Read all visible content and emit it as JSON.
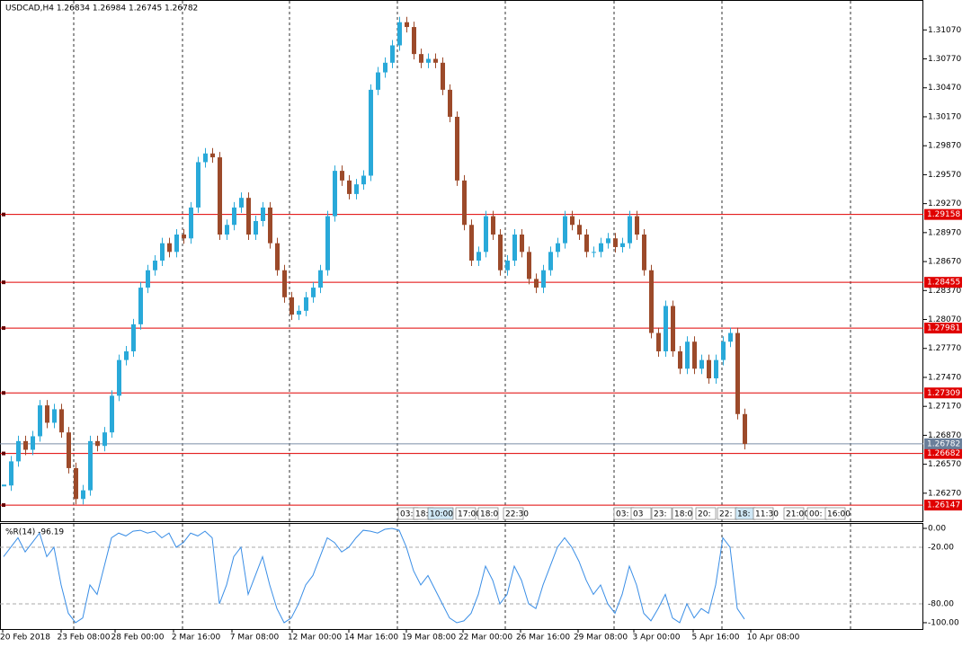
{
  "chart_data": {
    "type": "candlestick",
    "title": "USDCAD,H4  1.26834 1.26984 1.26745 1.26782",
    "close": [
      1.2635,
      1.266,
      1.2681,
      1.2672,
      1.2686,
      1.2718,
      1.27,
      1.2714,
      1.269,
      1.2653,
      1.2621,
      1.263,
      1.2681,
      1.2676,
      1.269,
      1.2728,
      1.2765,
      1.2774,
      1.2802,
      1.284,
      1.2858,
      1.2868,
      1.2886,
      1.2877,
      1.2895,
      1.2891,
      1.2923,
      1.297,
      1.2979,
      1.2975,
      1.2895,
      1.2905,
      1.2923,
      1.2933,
      1.2895,
      1.2909,
      1.2923,
      1.2886,
      1.2858,
      1.283,
      1.2812,
      1.2816,
      1.283,
      1.284,
      1.2858,
      1.2914,
      1.2961,
      1.2951,
      1.2937,
      1.2947,
      1.2956,
      1.3045,
      1.3063,
      1.3073,
      1.3091,
      1.3115,
      1.311,
      1.3082,
      1.3073,
      1.3077,
      1.3073,
      1.3045,
      1.3017,
      1.2951,
      1.2905,
      1.2868,
      1.2877,
      1.2914,
      1.2895,
      1.2858,
      1.2868,
      1.2895,
      1.2877,
      1.2849,
      1.284,
      1.2858,
      1.2877,
      1.2886,
      1.2914,
      1.2905,
      1.2895,
      1.2877,
      1.2877,
      1.2886,
      1.2891,
      1.2882,
      1.2886,
      1.2914,
      1.2895,
      1.2858,
      1.2793,
      1.2774,
      1.2821,
      1.2774,
      1.2756,
      1.2784,
      1.2756,
      1.2765,
      1.2746,
      1.2765,
      1.2784,
      1.2793,
      1.2709,
      1.2678
    ],
    "up_color": "#29a9d9",
    "down_color": "#9c4a2a",
    "ylim": [
      1.2598,
      1.3138
    ],
    "yticks": [
      {
        "value": 1.3107,
        "label": "1.31070"
      },
      {
        "value": 1.3077,
        "label": "1.30770"
      },
      {
        "value": 1.3047,
        "label": "1.30470"
      },
      {
        "value": 1.3017,
        "label": "1.30170"
      },
      {
        "value": 1.2987,
        "label": "1.29870"
      },
      {
        "value": 1.2957,
        "label": "1.29570"
      },
      {
        "value": 1.2927,
        "label": "1.29270"
      },
      {
        "value": 1.2897,
        "label": "1.28970"
      },
      {
        "value": 1.2867,
        "label": "1.28670"
      },
      {
        "value": 1.2837,
        "label": "1.28370"
      },
      {
        "value": 1.2807,
        "label": "1.28070"
      },
      {
        "value": 1.2777,
        "label": "1.27770"
      },
      {
        "value": 1.2747,
        "label": "1.27470"
      },
      {
        "value": 1.2717,
        "label": "1.27170"
      },
      {
        "value": 1.2687,
        "label": "1.26870"
      },
      {
        "value": 1.2657,
        "label": "1.26570"
      },
      {
        "value": 1.2627,
        "label": "1.26270"
      }
    ],
    "levels": [
      1.29158,
      1.28455,
      1.27981,
      1.27309,
      1.26682,
      1.26147
    ],
    "level_color": "#e00000",
    "current_price": 1.26782,
    "x_labels": [
      "20 Feb 2018",
      "23 Feb 08:00",
      "28 Feb 00:00",
      "2 Mar 16:00",
      "7 Mar 08:00",
      "12 Mar 00:00",
      "14 Mar 16:00",
      "19 Mar 08:00",
      "22 Mar 00:00",
      "26 Mar 16:00",
      "29 Mar 08:00",
      "3 Apr 00:00",
      "5 Apr 16:00",
      "10 Apr 08:00"
    ],
    "time_markers": [
      "03:",
      "18:",
      "10:00",
      "17:00",
      "18:0",
      "22:30",
      "03:",
      "03",
      "23:",
      "18:0",
      "20:",
      "22:",
      "18:",
      "11:30",
      "21:00",
      "00:",
      "16:00"
    ],
    "indicator": {
      "label": "%R(14) -96.19",
      "color": "#3a8ee6",
      "values": [
        -30,
        -20,
        -10,
        -25,
        -15,
        -5,
        -30,
        -20,
        -60,
        -90,
        -100,
        -95,
        -60,
        -70,
        -40,
        -10,
        -5,
        -8,
        -3,
        -2,
        -5,
        -3,
        -10,
        -5,
        -20,
        -15,
        -5,
        -8,
        -3,
        -10,
        -80,
        -60,
        -30,
        -20,
        -70,
        -50,
        -30,
        -60,
        -85,
        -100,
        -95,
        -80,
        -60,
        -50,
        -30,
        -10,
        -15,
        -25,
        -20,
        -10,
        -2,
        -3,
        -5,
        -1,
        0,
        -2,
        -20,
        -45,
        -60,
        -50,
        -65,
        -80,
        -95,
        -100,
        -98,
        -90,
        -70,
        -40,
        -55,
        -80,
        -70,
        -40,
        -55,
        -80,
        -85,
        -60,
        -40,
        -20,
        -10,
        -20,
        -35,
        -55,
        -70,
        -60,
        -80,
        -90,
        -70,
        -40,
        -60,
        -90,
        -98,
        -85,
        -70,
        -95,
        -100,
        -80,
        -95,
        -85,
        -90,
        -60,
        -10,
        -20,
        -85,
        -96.19
      ],
      "ylim": [
        -106.7,
        5.7
      ],
      "yticks": [
        {
          "value": 0,
          "label": "0.00"
        },
        {
          "value": -20,
          "label": "-20.00"
        },
        {
          "value": -80,
          "label": "-80.00"
        },
        {
          "value": -100,
          "label": "-100.00"
        }
      ]
    }
  }
}
